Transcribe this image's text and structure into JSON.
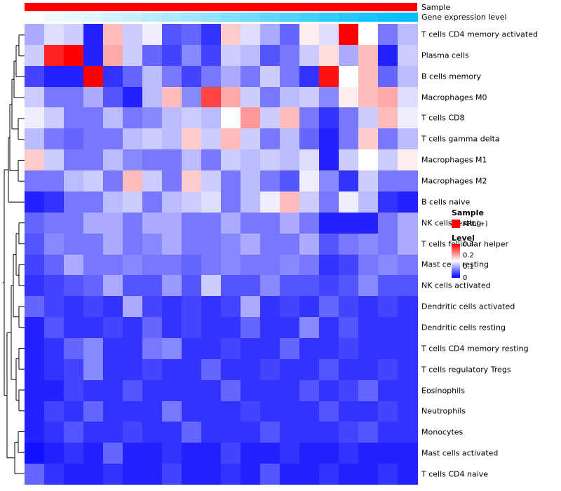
{
  "annotation_tracks": {
    "sample_label": "Sample",
    "gene_expr_label": "Gene expression level",
    "sample_color": "#FF0000",
    "gene_expr_low_color": "#FFFFFF",
    "gene_expr_high_color": "#00BFFF",
    "gene_expr_values": [
      0.02,
      0.06,
      0.1,
      0.14,
      0.18,
      0.23,
      0.28,
      0.33,
      0.38,
      0.44,
      0.5,
      0.56,
      0.62,
      0.68,
      0.74,
      0.8,
      0.86,
      0.91,
      0.96,
      1.0
    ]
  },
  "chart_data": {
    "type": "heatmap",
    "title": "",
    "xlabel": "",
    "ylabel": "",
    "n_cols": 20,
    "column_labels_shown": false,
    "grid": false,
    "legend_position": "right",
    "colormap": {
      "low": "#0000FF",
      "mid": "#FFFFFF",
      "high": "#FF0000",
      "domain": [
        0,
        0.15,
        0.3
      ]
    },
    "rows": [
      "T cells CD4 memory activated",
      "Plasma cells",
      "B cells memory",
      "Macrophages M0",
      "T cells CD8",
      "T cells gamma delta",
      "Macrophages M1",
      "Macrophages M2",
      "B cells naive",
      "NK cells resting",
      "T cells follicular helper",
      "Mast cells resting",
      "NK cells activated",
      "Dendritic cells activated",
      "Dendritic cells resting",
      "T cells CD4 memory resting",
      "T cells regulatory Tregs",
      "Eosinophils",
      "Neutrophils",
      "Monocytes",
      "Mast cells activated",
      "T cells CD4 naive"
    ],
    "values": [
      [
        0.1,
        0.13,
        0.12,
        0.02,
        0.19,
        0.12,
        0.14,
        0.05,
        0.06,
        0.03,
        0.18,
        0.13,
        0.1,
        0.06,
        0.16,
        0.13,
        0.3,
        0.15,
        0.07,
        0.11
      ],
      [
        0.12,
        0.28,
        0.3,
        0.02,
        0.2,
        0.12,
        0.06,
        0.04,
        0.08,
        0.04,
        0.12,
        0.11,
        0.05,
        0.07,
        0.12,
        0.17,
        0.1,
        0.19,
        0.02,
        0.12
      ],
      [
        0.04,
        0.02,
        0.02,
        0.3,
        0.03,
        0.06,
        0.11,
        0.07,
        0.04,
        0.07,
        0.1,
        0.07,
        0.12,
        0.07,
        0.03,
        0.29,
        0.15,
        0.19,
        0.06,
        0.11
      ],
      [
        0.12,
        0.07,
        0.07,
        0.1,
        0.05,
        0.02,
        0.11,
        0.19,
        0.08,
        0.26,
        0.2,
        0.12,
        0.07,
        0.11,
        0.12,
        0.08,
        0.16,
        0.19,
        0.2,
        0.13
      ],
      [
        0.14,
        0.12,
        0.07,
        0.07,
        0.11,
        0.07,
        0.08,
        0.11,
        0.12,
        0.11,
        0.15,
        0.21,
        0.12,
        0.19,
        0.07,
        0.03,
        0.07,
        0.12,
        0.19,
        0.14
      ],
      [
        0.11,
        0.07,
        0.06,
        0.07,
        0.07,
        0.11,
        0.12,
        0.11,
        0.18,
        0.12,
        0.19,
        0.12,
        0.07,
        0.11,
        0.06,
        0.02,
        0.07,
        0.18,
        0.07,
        0.11
      ],
      [
        0.18,
        0.12,
        0.07,
        0.07,
        0.11,
        0.08,
        0.07,
        0.07,
        0.11,
        0.07,
        0.12,
        0.11,
        0.12,
        0.11,
        0.13,
        0.02,
        0.12,
        0.15,
        0.12,
        0.16
      ],
      [
        0.07,
        0.07,
        0.11,
        0.12,
        0.07,
        0.19,
        0.12,
        0.07,
        0.18,
        0.12,
        0.07,
        0.11,
        0.07,
        0.05,
        0.14,
        0.08,
        0.03,
        0.12,
        0.07,
        0.07
      ],
      [
        0.02,
        0.03,
        0.07,
        0.07,
        0.11,
        0.12,
        0.07,
        0.11,
        0.12,
        0.13,
        0.07,
        0.11,
        0.14,
        0.19,
        0.12,
        0.07,
        0.14,
        0.11,
        0.03,
        0.02
      ],
      [
        0.06,
        0.07,
        0.07,
        0.1,
        0.1,
        0.07,
        0.1,
        0.1,
        0.07,
        0.07,
        0.1,
        0.07,
        0.07,
        0.1,
        0.07,
        0.02,
        0.02,
        0.02,
        0.07,
        0.1
      ],
      [
        0.05,
        0.08,
        0.07,
        0.07,
        0.1,
        0.07,
        0.08,
        0.1,
        0.07,
        0.07,
        0.08,
        0.1,
        0.07,
        0.07,
        0.1,
        0.05,
        0.07,
        0.08,
        0.07,
        0.1
      ],
      [
        0.04,
        0.06,
        0.1,
        0.07,
        0.07,
        0.08,
        0.07,
        0.07,
        0.06,
        0.07,
        0.08,
        0.07,
        0.07,
        0.08,
        0.07,
        0.03,
        0.04,
        0.07,
        0.08,
        0.07
      ],
      [
        0.03,
        0.04,
        0.05,
        0.06,
        0.1,
        0.05,
        0.05,
        0.09,
        0.05,
        0.12,
        0.05,
        0.05,
        0.08,
        0.05,
        0.05,
        0.04,
        0.05,
        0.08,
        0.05,
        0.05
      ],
      [
        0.06,
        0.04,
        0.03,
        0.04,
        0.03,
        0.1,
        0.04,
        0.03,
        0.04,
        0.03,
        0.04,
        0.1,
        0.03,
        0.04,
        0.03,
        0.06,
        0.04,
        0.03,
        0.04,
        0.03
      ],
      [
        0.02,
        0.05,
        0.03,
        0.03,
        0.04,
        0.03,
        0.06,
        0.03,
        0.04,
        0.03,
        0.03,
        0.06,
        0.03,
        0.03,
        0.08,
        0.03,
        0.05,
        0.03,
        0.03,
        0.03
      ],
      [
        0.02,
        0.03,
        0.06,
        0.08,
        0.03,
        0.03,
        0.07,
        0.08,
        0.03,
        0.03,
        0.04,
        0.03,
        0.03,
        0.06,
        0.03,
        0.03,
        0.04,
        0.03,
        0.03,
        0.03
      ],
      [
        0.02,
        0.03,
        0.04,
        0.08,
        0.03,
        0.03,
        0.04,
        0.03,
        0.03,
        0.06,
        0.03,
        0.03,
        0.04,
        0.03,
        0.03,
        0.05,
        0.03,
        0.03,
        0.04,
        0.03
      ],
      [
        0.02,
        0.02,
        0.04,
        0.03,
        0.03,
        0.05,
        0.03,
        0.03,
        0.03,
        0.03,
        0.06,
        0.03,
        0.03,
        0.03,
        0.05,
        0.03,
        0.04,
        0.06,
        0.03,
        0.03
      ],
      [
        0.02,
        0.04,
        0.03,
        0.06,
        0.03,
        0.03,
        0.03,
        0.07,
        0.03,
        0.03,
        0.03,
        0.04,
        0.03,
        0.03,
        0.03,
        0.05,
        0.03,
        0.03,
        0.04,
        0.03
      ],
      [
        0.02,
        0.03,
        0.05,
        0.03,
        0.03,
        0.04,
        0.03,
        0.03,
        0.06,
        0.03,
        0.03,
        0.03,
        0.05,
        0.03,
        0.03,
        0.03,
        0.04,
        0.05,
        0.03,
        0.03
      ],
      [
        0.01,
        0.02,
        0.03,
        0.02,
        0.06,
        0.02,
        0.02,
        0.03,
        0.02,
        0.02,
        0.04,
        0.02,
        0.02,
        0.03,
        0.02,
        0.02,
        0.03,
        0.02,
        0.02,
        0.02
      ],
      [
        0.06,
        0.03,
        0.02,
        0.02,
        0.03,
        0.02,
        0.02,
        0.04,
        0.02,
        0.02,
        0.03,
        0.02,
        0.05,
        0.02,
        0.02,
        0.03,
        0.02,
        0.02,
        0.03,
        0.02
      ]
    ]
  },
  "legends": {
    "sample": {
      "title": "Sample",
      "items": [
        {
          "label": "ARL(+)",
          "color": "#FF0000"
        }
      ]
    },
    "level": {
      "title": "Level",
      "ticks": [
        "0.3",
        "0.2",
        "0.1",
        "0"
      ],
      "gradient_top": "#FF0000",
      "gradient_mid": "#FFFFFF",
      "gradient_bottom": "#0000FF"
    }
  }
}
